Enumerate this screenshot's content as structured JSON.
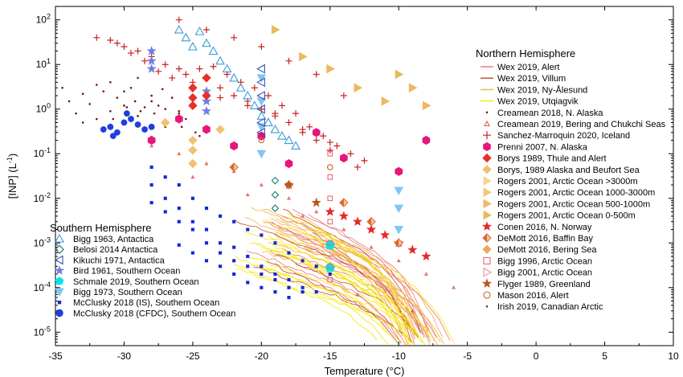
{
  "chart_data": {
    "type": "scatter",
    "xlabel": "Temperature (°C)",
    "ylabel": "[INP] (L",
    "ylabel_sup": "-1",
    "ylabel_tail": ")",
    "xlim": [
      -35,
      10
    ],
    "ylim": [
      5e-06,
      200
    ],
    "yscale": "log",
    "x_ticks": [
      -35,
      -30,
      -25,
      -20,
      -15,
      -10,
      -5,
      0,
      5,
      10
    ],
    "x_tick_labels": [
      "-35",
      "-30",
      "-25",
      "-20",
      "-15",
      "-10",
      "-5",
      "0",
      "5",
      "10"
    ],
    "y_tick_labels": [
      {
        "v": 100,
        "base": "10",
        "exp": "2"
      },
      {
        "v": 10,
        "base": "10",
        "exp": "1"
      },
      {
        "v": 1,
        "base": "10",
        "exp": "0"
      },
      {
        "v": 0.1,
        "base": "10",
        "exp": "-1"
      },
      {
        "v": 0.01,
        "base": "10",
        "exp": "-2"
      },
      {
        "v": 0.001,
        "base": "10",
        "exp": "-3"
      },
      {
        "v": 0.0001,
        "base": "10",
        "exp": "-4"
      },
      {
        "v": 1e-05,
        "base": "10",
        "exp": "-5"
      }
    ],
    "legend_south_title": "Southern Hemisphere",
    "legend_north_title": "Northern Hemisphere",
    "legend_south": [
      {
        "label": "Bigg 1963, Antactica",
        "marker": "tri-up-open",
        "color": "#3a9ad9"
      },
      {
        "label": "Belosi 2014 Antactica",
        "marker": "diamond-open",
        "color": "#1a7a6e"
      },
      {
        "label": "Kikuchi 1971,  Antactica",
        "marker": "tri-left-open",
        "color": "#3b4fb0"
      },
      {
        "label": "Bird 1961, Southern Ocean",
        "marker": "star",
        "color": "#6f7fe0"
      },
      {
        "label": "Schmale 2019, Southern Ocean",
        "marker": "pentagon",
        "color": "#00e5ee"
      },
      {
        "label": "Bigg 1973, Southern Ocean",
        "marker": "tri-down",
        "color": "#7ec8f0"
      },
      {
        "label": "McClusky 2018 (IS), Southern Ocean",
        "marker": "square",
        "color": "#1428d8"
      },
      {
        "label": "McClusky 2018 (CFDC), Southern Ocean",
        "marker": "circle",
        "color": "#1f3fe0"
      }
    ],
    "legend_north": [
      {
        "label": "Wex 2019, Alert",
        "marker": "line",
        "color": "#e8777a"
      },
      {
        "label": "Wex 2019, Villum",
        "marker": "line",
        "color": "#c04a2a"
      },
      {
        "label": "Wex 2019, Ny-Ålesund",
        "marker": "line",
        "color": "#f3b04a"
      },
      {
        "label": "Wex 2019, Utqiagvik",
        "marker": "line",
        "color": "#f5e800"
      },
      {
        "label": "Creamean 2018, N. Alaska",
        "marker": "dot",
        "color": "#7a1010"
      },
      {
        "label": "Creamean 2019, Bering and Chukchi Seas",
        "marker": "tri-small",
        "color": "#e06050"
      },
      {
        "label": "Sanchez-Marroquin 2020, Iceland",
        "marker": "plus",
        "color": "#c82020"
      },
      {
        "label": "Prenni 2007, N. Alaska",
        "marker": "hexagon",
        "color": "#e8157a"
      },
      {
        "label": "Borys 1989, Thule and Alert",
        "marker": "diamond",
        "color": "#e8302a"
      },
      {
        "label": "Borys, 1989 Alaska and Beufort Sea",
        "marker": "diamond",
        "color": "#f2c070"
      },
      {
        "label": "Rogers 2001, Arctic Ocean >3000m",
        "marker": "tri-right",
        "color": "#f5d590"
      },
      {
        "label": "Rogers 2001, Arctic Ocean 1000-3000m",
        "marker": "tri-right",
        "color": "#f2c878"
      },
      {
        "label": "Rogers 2001, Arctic Ocean 500-1000m",
        "marker": "tri-right",
        "color": "#eebb66"
      },
      {
        "label": "Rogers 2001, Arctic Ocean 0-500m",
        "marker": "tri-right",
        "color": "#ecb860"
      },
      {
        "label": "Conen 2016, N. Norway",
        "marker": "star",
        "color": "#e82828"
      },
      {
        "label": "DeMott 2016, Baffin Bay",
        "marker": "diamond-half",
        "color": "#d86a2a"
      },
      {
        "label": "DeMott 2016, Bering Sea",
        "marker": "diamond",
        "color": "#f0a860"
      },
      {
        "label": "Bigg 1996, Arctic Ocean",
        "marker": "square-open",
        "color": "#e86a78"
      },
      {
        "label": "Bigg 2001, Arctic Ocean",
        "marker": "tri-right-open",
        "color": "#f08a9a"
      },
      {
        "label": "Flyger 1989, Greenland",
        "marker": "star",
        "color": "#b8561e"
      },
      {
        "label": "Mason 2016, Alert",
        "marker": "circle-open",
        "color": "#c8602a"
      },
      {
        "label": "Irish 2019, Canadian Arctic",
        "marker": "dot",
        "color": "#7a3a1a"
      }
    ],
    "series": [
      {
        "name": "Creamean 2018, N. Alaska",
        "marker": "dot",
        "color": "#7a1010",
        "x": [
          -34,
          -33,
          -32,
          -31,
          -30,
          -29.5,
          -29,
          -28,
          -27.5,
          -27,
          -26,
          -25.5,
          -33.5,
          -32.5,
          -31.5,
          -30.5,
          -29.2,
          -28.5,
          -27.8,
          -26.8,
          -25.8,
          -24.8,
          -33,
          -31,
          -29,
          -27,
          -25,
          -30,
          -28,
          -26,
          -32,
          -24.5,
          -28.8,
          -30.8,
          -26.5,
          -34.5,
          -27.2,
          -29.8
        ],
        "y": [
          1.5,
          2.2,
          3.5,
          4,
          2.5,
          3,
          5,
          2,
          1.2,
          1,
          0.9,
          0.6,
          0.8,
          1.3,
          2.5,
          1.8,
          1.5,
          1.1,
          0.8,
          0.5,
          0.4,
          0.3,
          0.5,
          0.9,
          0.7,
          0.4,
          0.2,
          1.2,
          1.5,
          0.8,
          0.6,
          0.25,
          0.9,
          0.6,
          1.8,
          3,
          2.8,
          1.1
        ]
      },
      {
        "name": "Sanchez-Marroquin 2020, Iceland",
        "marker": "plus",
        "color": "#c82020",
        "x": [
          -32,
          -31,
          -30,
          -29,
          -28,
          -27,
          -26,
          -25.5,
          -25,
          -24.5,
          -24,
          -23,
          -22,
          -21,
          -20,
          -19,
          -18,
          -17,
          -16,
          -15,
          -14,
          -13,
          -30.5,
          -29.5,
          -28.5,
          -27.5,
          -26.5,
          -23.5,
          -22.5,
          -21.5,
          -20.5,
          -19.5,
          -18.5,
          -17.5,
          -16.5,
          -15.5,
          -14.5,
          -13.5,
          -12.5,
          -26,
          -24,
          -22,
          -20,
          -18,
          -16,
          -14,
          -25,
          -23,
          -21,
          -19,
          -17,
          -15
        ],
        "y": [
          40,
          35,
          25,
          20,
          15,
          10,
          8,
          6,
          4,
          8,
          5,
          3,
          2,
          1.5,
          1,
          0.8,
          0.5,
          0.3,
          0.2,
          0.12,
          0.08,
          0.05,
          30,
          18,
          12,
          7,
          5,
          9,
          6,
          4,
          3,
          2,
          1.2,
          0.8,
          0.4,
          0.25,
          0.15,
          0.1,
          0.07,
          100,
          60,
          40,
          25,
          12,
          6,
          2,
          3,
          1.8,
          1.2,
          0.7,
          0.35,
          0.18
        ]
      },
      {
        "name": "Bigg 1963, Antactica",
        "marker": "tri-up-open",
        "color": "#3a9ad9",
        "x": [
          -26,
          -25.5,
          -25,
          -24.5,
          -24,
          -23.5,
          -23,
          -22.5,
          -22,
          -21.5,
          -21,
          -20.5,
          -20,
          -19.5,
          -19,
          -18.5,
          -18,
          -17.5
        ],
        "y": [
          60,
          40,
          25,
          55,
          30,
          20,
          12,
          8,
          5,
          3,
          2,
          1.2,
          0.7,
          0.5,
          0.35,
          0.25,
          0.2,
          0.15
        ]
      },
      {
        "name": "McClusky 2018 (IS), Southern Ocean",
        "marker": "square",
        "color": "#1428d8",
        "x": [
          -28,
          -28,
          -27,
          -27,
          -26,
          -26,
          -25,
          -25,
          -24,
          -24,
          -23,
          -23,
          -22,
          -22,
          -21,
          -21,
          -20,
          -20,
          -19,
          -19,
          -18,
          -18,
          -17,
          -17,
          -16,
          -16,
          -15,
          -28,
          -27,
          -26,
          -25,
          -24,
          -23,
          -22,
          -21,
          -20,
          -19,
          -18,
          -17,
          -26,
          -25,
          -24,
          -23,
          -22,
          -21,
          -20,
          -19,
          -18
        ],
        "y": [
          0.05,
          0.02,
          0.03,
          0.01,
          0.02,
          0.006,
          0.01,
          0.003,
          0.006,
          0.002,
          0.004,
          0.001,
          0.003,
          0.0008,
          0.002,
          0.0005,
          0.0015,
          0.0003,
          0.001,
          0.0002,
          0.0006,
          0.00015,
          0.0004,
          0.0001,
          0.0003,
          8e-05,
          0.0002,
          0.008,
          0.005,
          0.003,
          0.002,
          0.001,
          0.0006,
          0.0004,
          0.0003,
          0.0002,
          0.00015,
          0.0001,
          8e-05,
          0.0009,
          0.0006,
          0.0004,
          0.0003,
          0.0002,
          0.00013,
          0.0001,
          8e-05,
          6e-05
        ]
      },
      {
        "name": "McClusky 2018 (CFDC), Southern Ocean",
        "marker": "circle",
        "color": "#1f3fe0",
        "x": [
          -31.5,
          -31,
          -30.5,
          -30,
          -29.5,
          -29,
          -28.5,
          -28,
          -30.8,
          -29.8
        ],
        "y": [
          0.35,
          0.4,
          0.3,
          0.5,
          0.6,
          0.45,
          0.35,
          0.4,
          0.25,
          0.8
        ]
      },
      {
        "name": "Bird 1961, Southern Ocean",
        "marker": "star",
        "color": "#6f7fe0",
        "x": [
          -28,
          -28,
          -28,
          -24,
          -24,
          -24
        ],
        "y": [
          20,
          12,
          8,
          2.5,
          1.5,
          0.9
        ]
      },
      {
        "name": "Prenni 2007, N. Alaska",
        "marker": "hexagon",
        "color": "#e8157a",
        "x": [
          -28,
          -26,
          -24,
          -22,
          -20,
          -18,
          -16,
          -10,
          -8,
          -14
        ],
        "y": [
          0.2,
          0.6,
          0.35,
          0.15,
          0.25,
          0.06,
          0.3,
          0.04,
          0.2,
          0.08
        ]
      },
      {
        "name": "Borys 1989, Thule and Alert",
        "marker": "diamond",
        "color": "#e8302a",
        "x": [
          -25,
          -25,
          -25,
          -24,
          -24
        ],
        "y": [
          3,
          1.8,
          1.2,
          5,
          2
        ]
      },
      {
        "name": "Borys, 1989 Alaska and Beufort Sea",
        "marker": "diamond",
        "color": "#f2c070",
        "x": [
          -25,
          -25,
          -25,
          -27,
          -23
        ],
        "y": [
          0.2,
          0.12,
          0.06,
          0.5,
          0.35
        ]
      },
      {
        "name": "Rogers 2001, Arctic Ocean >3000m",
        "marker": "tri-right",
        "color": "#ecb860",
        "x": [
          -19,
          -17,
          -15,
          -13,
          -11,
          -10,
          -9,
          -8
        ],
        "y": [
          60,
          15,
          8,
          3,
          1.5,
          6,
          3,
          1.2
        ]
      },
      {
        "name": "Schmale 2019, Southern Ocean",
        "marker": "pentagon",
        "color": "#00e5ee",
        "x": [
          -15,
          -15
        ],
        "y": [
          0.0009,
          0.00028
        ]
      },
      {
        "name": "Bigg 1973, Southern Ocean",
        "marker": "tri-down",
        "color": "#7ec8f0",
        "x": [
          -20,
          -20,
          -20,
          -20,
          -10,
          -10,
          -10
        ],
        "y": [
          5,
          1.5,
          0.4,
          0.1,
          0.015,
          0.006,
          0.002
        ]
      },
      {
        "name": "Kikuchi 1971,  Antactica",
        "marker": "tri-left-open",
        "color": "#3b4fb0",
        "x": [
          -20,
          -20,
          -20,
          -20,
          -20,
          -20
        ],
        "y": [
          8,
          4,
          2,
          1,
          0.5,
          0.3
        ]
      },
      {
        "name": "Belosi 2014 Antactica",
        "marker": "diamond-open",
        "color": "#1a7a6e",
        "x": [
          -19,
          -19,
          -19
        ],
        "y": [
          0.025,
          0.012,
          0.006
        ]
      },
      {
        "name": "Bigg 1996, Arctic Ocean",
        "marker": "square-open",
        "color": "#e86a78",
        "x": [
          -15,
          -15,
          -15,
          -15,
          -15,
          -15,
          -15
        ],
        "y": [
          0.1,
          0.03,
          0.01,
          0.003,
          0.001,
          0.0003,
          0.00015
        ]
      },
      {
        "name": "Conen 2016, N. Norway",
        "marker": "star",
        "color": "#e82828",
        "x": [
          -15,
          -14,
          -13,
          -12,
          -11,
          -10,
          -9,
          -8
        ],
        "y": [
          0.005,
          0.004,
          0.003,
          0.002,
          0.0015,
          0.001,
          0.0007,
          0.0005
        ]
      },
      {
        "name": "DeMott 2016, Baffin Bay",
        "marker": "diamond-half",
        "color": "#d86a2a",
        "x": [
          -22,
          -18,
          -14,
          -12,
          -10
        ],
        "y": [
          0.05,
          0.02,
          0.008,
          0.003,
          0.001
        ]
      },
      {
        "name": "Mason 2016, Alert",
        "marker": "circle-open",
        "color": "#c8602a",
        "x": [
          -20,
          -15
        ],
        "y": [
          0.2,
          0.05
        ]
      },
      {
        "name": "Flyger 1989, Greenland",
        "marker": "star",
        "color": "#b8561e",
        "x": [
          -18,
          -16
        ],
        "y": [
          0.02,
          0.008
        ]
      },
      {
        "name": "Creamean 2019, Bering and Chukchi Seas",
        "marker": "tri-small",
        "color": "#e06050",
        "x": [
          -28,
          -26,
          -24,
          -22,
          -20,
          -18,
          -16,
          -14,
          -12,
          -10,
          -8,
          -6,
          -25,
          -21,
          -17,
          -13,
          -9
        ],
        "y": [
          0.15,
          0.1,
          0.06,
          0.04,
          0.02,
          0.01,
          0.005,
          0.002,
          0.0008,
          0.0004,
          0.0002,
          0.0001,
          0.03,
          0.012,
          0.004,
          7e-05,
          3e-05
        ]
      }
    ],
    "curves": [
      {
        "name": "Wex 2019, Alert",
        "color": "#e8777a",
        "count": 14
      },
      {
        "name": "Wex 2019, Villum",
        "color": "#c04a2a",
        "count": 6
      },
      {
        "name": "Wex 2019, Ny-Ålesund",
        "color": "#f3b04a",
        "count": 12
      },
      {
        "name": "Wex 2019, Utqiagvik",
        "color": "#f5e800",
        "count": 18
      }
    ]
  }
}
